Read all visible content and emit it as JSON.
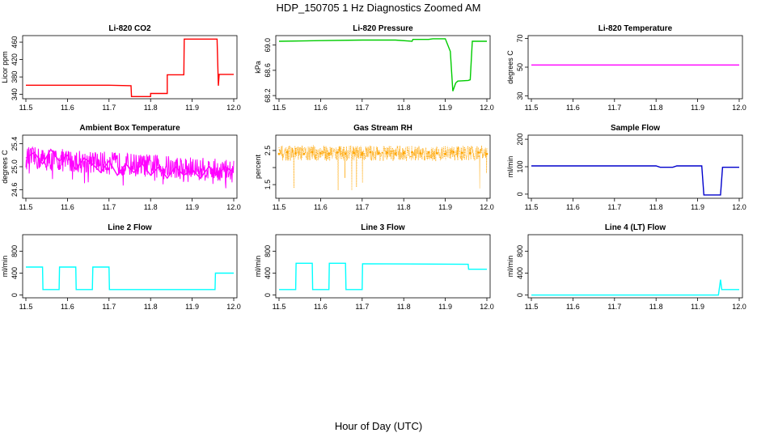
{
  "figure": {
    "title": "HDP_150705  1 Hz Diagnostics Zoomed AM",
    "xlabel": "Hour of Day (UTC)"
  },
  "chart_data": [
    {
      "type": "line",
      "title": "Li-820 CO2",
      "ylabel": "Licor ppm",
      "color": "#ff0000",
      "xlim": [
        11.5,
        12.0
      ],
      "ylim": [
        330,
        475
      ],
      "xticks": [
        "11.5",
        "11.6",
        "11.7",
        "11.8",
        "11.9",
        "12.0"
      ],
      "yticks": [
        340,
        380,
        420,
        460
      ],
      "ytick_labels": [
        "340",
        "380",
        "420",
        "460"
      ],
      "series": [
        {
          "x": [
            11.5,
            11.7,
            11.753,
            11.754,
            11.8,
            11.8,
            11.84,
            11.84,
            11.88,
            11.881,
            11.96,
            11.963,
            11.965,
            12.0
          ],
          "y": [
            361,
            361,
            360,
            335,
            335,
            342,
            342,
            385,
            385,
            467,
            467,
            360,
            386,
            386
          ]
        }
      ]
    },
    {
      "type": "line",
      "title": "Li-820 Pressure",
      "ylabel": "kPa",
      "color": "#00cc00",
      "xlim": [
        11.5,
        12.0
      ],
      "ylim": [
        68.15,
        69.15
      ],
      "xticks": [
        "11.5",
        "11.6",
        "11.7",
        "11.8",
        "11.9",
        "12.0"
      ],
      "yticks": [
        68.2,
        68.6,
        69.0
      ],
      "ytick_labels": [
        "68.2",
        "68.6",
        "69.0"
      ],
      "series": [
        {
          "x": [
            11.5,
            11.6,
            11.7,
            11.78,
            11.82,
            11.822,
            11.86,
            11.87,
            11.9,
            11.912,
            11.918,
            11.925,
            11.93,
            11.955,
            11.96,
            11.965,
            12.0
          ],
          "y": [
            69.06,
            69.07,
            69.08,
            69.08,
            69.06,
            69.09,
            69.09,
            69.1,
            69.1,
            68.9,
            68.27,
            68.4,
            68.43,
            68.44,
            68.45,
            69.06,
            69.06
          ]
        }
      ]
    },
    {
      "type": "line",
      "title": "Li-820 Temperature",
      "ylabel": "degrees C",
      "color": "#ff00ff",
      "xlim": [
        11.5,
        12.0
      ],
      "ylim": [
        28,
        72
      ],
      "xticks": [
        "11.5",
        "11.6",
        "11.7",
        "11.8",
        "11.9",
        "12.0"
      ],
      "yticks": [
        30,
        50,
        70
      ],
      "ytick_labels": [
        "30",
        "50",
        "70"
      ],
      "series": [
        {
          "x": [
            11.5,
            12.0
          ],
          "y": [
            51.5,
            51.5
          ]
        }
      ]
    },
    {
      "type": "line",
      "title": "Ambient Box Temperature",
      "ylabel": "degrees C",
      "color": "#ff00ff",
      "xlim": [
        11.5,
        12.0
      ],
      "ylim": [
        24.45,
        25.55
      ],
      "xticks": [
        "11.5",
        "11.6",
        "11.7",
        "11.8",
        "11.9",
        "12.0"
      ],
      "yticks": [
        24.6,
        25.0,
        25.4
      ],
      "ytick_labels": [
        "24.6",
        "25.0",
        "25.4"
      ],
      "series": [
        {
          "x": [
            11.5,
            11.52,
            11.54,
            11.56,
            11.58,
            11.6,
            11.62,
            11.64,
            11.66,
            11.68,
            11.7,
            11.72,
            11.74,
            11.76,
            11.78,
            11.8,
            11.82,
            11.84,
            11.86,
            11.88,
            11.9,
            11.92,
            11.94,
            11.96,
            11.98,
            12.0
          ],
          "y": [
            25.15,
            25.25,
            25.05,
            25.3,
            25.1,
            25.2,
            24.95,
            25.15,
            25.05,
            24.9,
            25.1,
            24.85,
            25.05,
            24.9,
            25.05,
            24.85,
            25.0,
            24.8,
            25.0,
            24.85,
            24.95,
            24.8,
            25.0,
            24.85,
            25.0,
            24.9
          ]
        }
      ]
    },
    {
      "type": "scatter",
      "title": "Gas Stream RH",
      "ylabel": "percent",
      "color": "#ffa500",
      "xlim": [
        11.5,
        12.0
      ],
      "ylim": [
        1.1,
        2.95
      ],
      "xticks": [
        "11.5",
        "11.6",
        "11.7",
        "11.8",
        "11.9",
        "12.0"
      ],
      "yticks": [
        1.5,
        2.0,
        2.5
      ],
      "ytick_labels": [
        "1.5",
        "",
        "2.5"
      ],
      "series": [
        {
          "x": [
            11.5,
            11.52,
            11.54,
            11.56,
            11.58,
            11.6,
            11.62,
            11.64,
            11.66,
            11.68,
            11.7,
            11.72,
            11.74,
            11.76,
            11.78,
            11.8,
            11.82,
            11.84,
            11.86,
            11.88,
            11.9,
            11.92,
            11.94,
            11.96,
            11.98,
            12.0
          ],
          "y": [
            2.4,
            2.45,
            2.42,
            2.4,
            2.45,
            2.42,
            2.4,
            2.44,
            2.41,
            2.43,
            2.4,
            2.45,
            2.42,
            2.44,
            2.4,
            2.43,
            2.45,
            2.41,
            2.44,
            2.42,
            2.4,
            2.45,
            2.43,
            2.42,
            2.44,
            2.4
          ]
        }
      ]
    },
    {
      "type": "line",
      "title": "Sample Flow",
      "ylabel": "ml/min",
      "color": "#0000cc",
      "xlim": [
        11.5,
        12.0
      ],
      "ylim": [
        -15,
        215
      ],
      "xticks": [
        "11.5",
        "11.6",
        "11.7",
        "11.8",
        "11.9",
        "12.0"
      ],
      "yticks": [
        0,
        100,
        200
      ],
      "ytick_labels": [
        "0",
        "100",
        "200"
      ],
      "series": [
        {
          "x": [
            11.5,
            11.8,
            11.81,
            11.84,
            11.85,
            11.91,
            11.915,
            11.955,
            11.96,
            12.0
          ],
          "y": [
            103,
            103,
            98,
            98,
            103,
            103,
            -3,
            -3,
            98,
            98
          ]
        }
      ]
    },
    {
      "type": "line",
      "title": "Line 2 Flow",
      "ylabel": "ml/min",
      "color": "#00ffff",
      "xlim": [
        11.5,
        12.0
      ],
      "ylim": [
        -50,
        1100
      ],
      "xticks": [
        "11.5",
        "11.6",
        "11.7",
        "11.8",
        "11.9",
        "12.0"
      ],
      "yticks": [
        0,
        400,
        800
      ],
      "ytick_labels": [
        "0",
        "400",
        "800"
      ],
      "series": [
        {
          "x": [
            11.5,
            11.54,
            11.541,
            11.58,
            11.581,
            11.62,
            11.621,
            11.66,
            11.661,
            11.7,
            11.701,
            11.955,
            11.956,
            12.0
          ],
          "y": [
            510,
            510,
            100,
            100,
            510,
            510,
            100,
            100,
            510,
            510,
            100,
            100,
            400,
            400
          ]
        }
      ]
    },
    {
      "type": "line",
      "title": "Line 3 Flow",
      "ylabel": "ml/min",
      "color": "#00ffff",
      "xlim": [
        11.5,
        12.0
      ],
      "ylim": [
        -50,
        1100
      ],
      "xticks": [
        "11.5",
        "11.6",
        "11.7",
        "11.8",
        "11.9",
        "12.0"
      ],
      "yticks": [
        0,
        400,
        800
      ],
      "ytick_labels": [
        "0",
        "400",
        "800"
      ],
      "series": [
        {
          "x": [
            11.5,
            11.54,
            11.541,
            11.58,
            11.581,
            11.62,
            11.621,
            11.66,
            11.661,
            11.7,
            11.701,
            11.955,
            11.956,
            12.0
          ],
          "y": [
            100,
            100,
            580,
            580,
            100,
            100,
            580,
            580,
            100,
            100,
            570,
            560,
            470,
            470
          ]
        }
      ]
    },
    {
      "type": "line",
      "title": "Line 4 (LT) Flow",
      "ylabel": "ml/min",
      "color": "#00ffff",
      "xlim": [
        11.5,
        12.0
      ],
      "ylim": [
        -50,
        1100
      ],
      "xticks": [
        "11.5",
        "11.6",
        "11.7",
        "11.8",
        "11.9",
        "12.0"
      ],
      "yticks": [
        0,
        400,
        800
      ],
      "ytick_labels": [
        "0",
        "400",
        "800"
      ],
      "series": [
        {
          "x": [
            11.5,
            11.95,
            11.955,
            11.958,
            11.962,
            12.0
          ],
          "y": [
            0,
            0,
            280,
            100,
            100,
            100
          ]
        }
      ]
    }
  ]
}
